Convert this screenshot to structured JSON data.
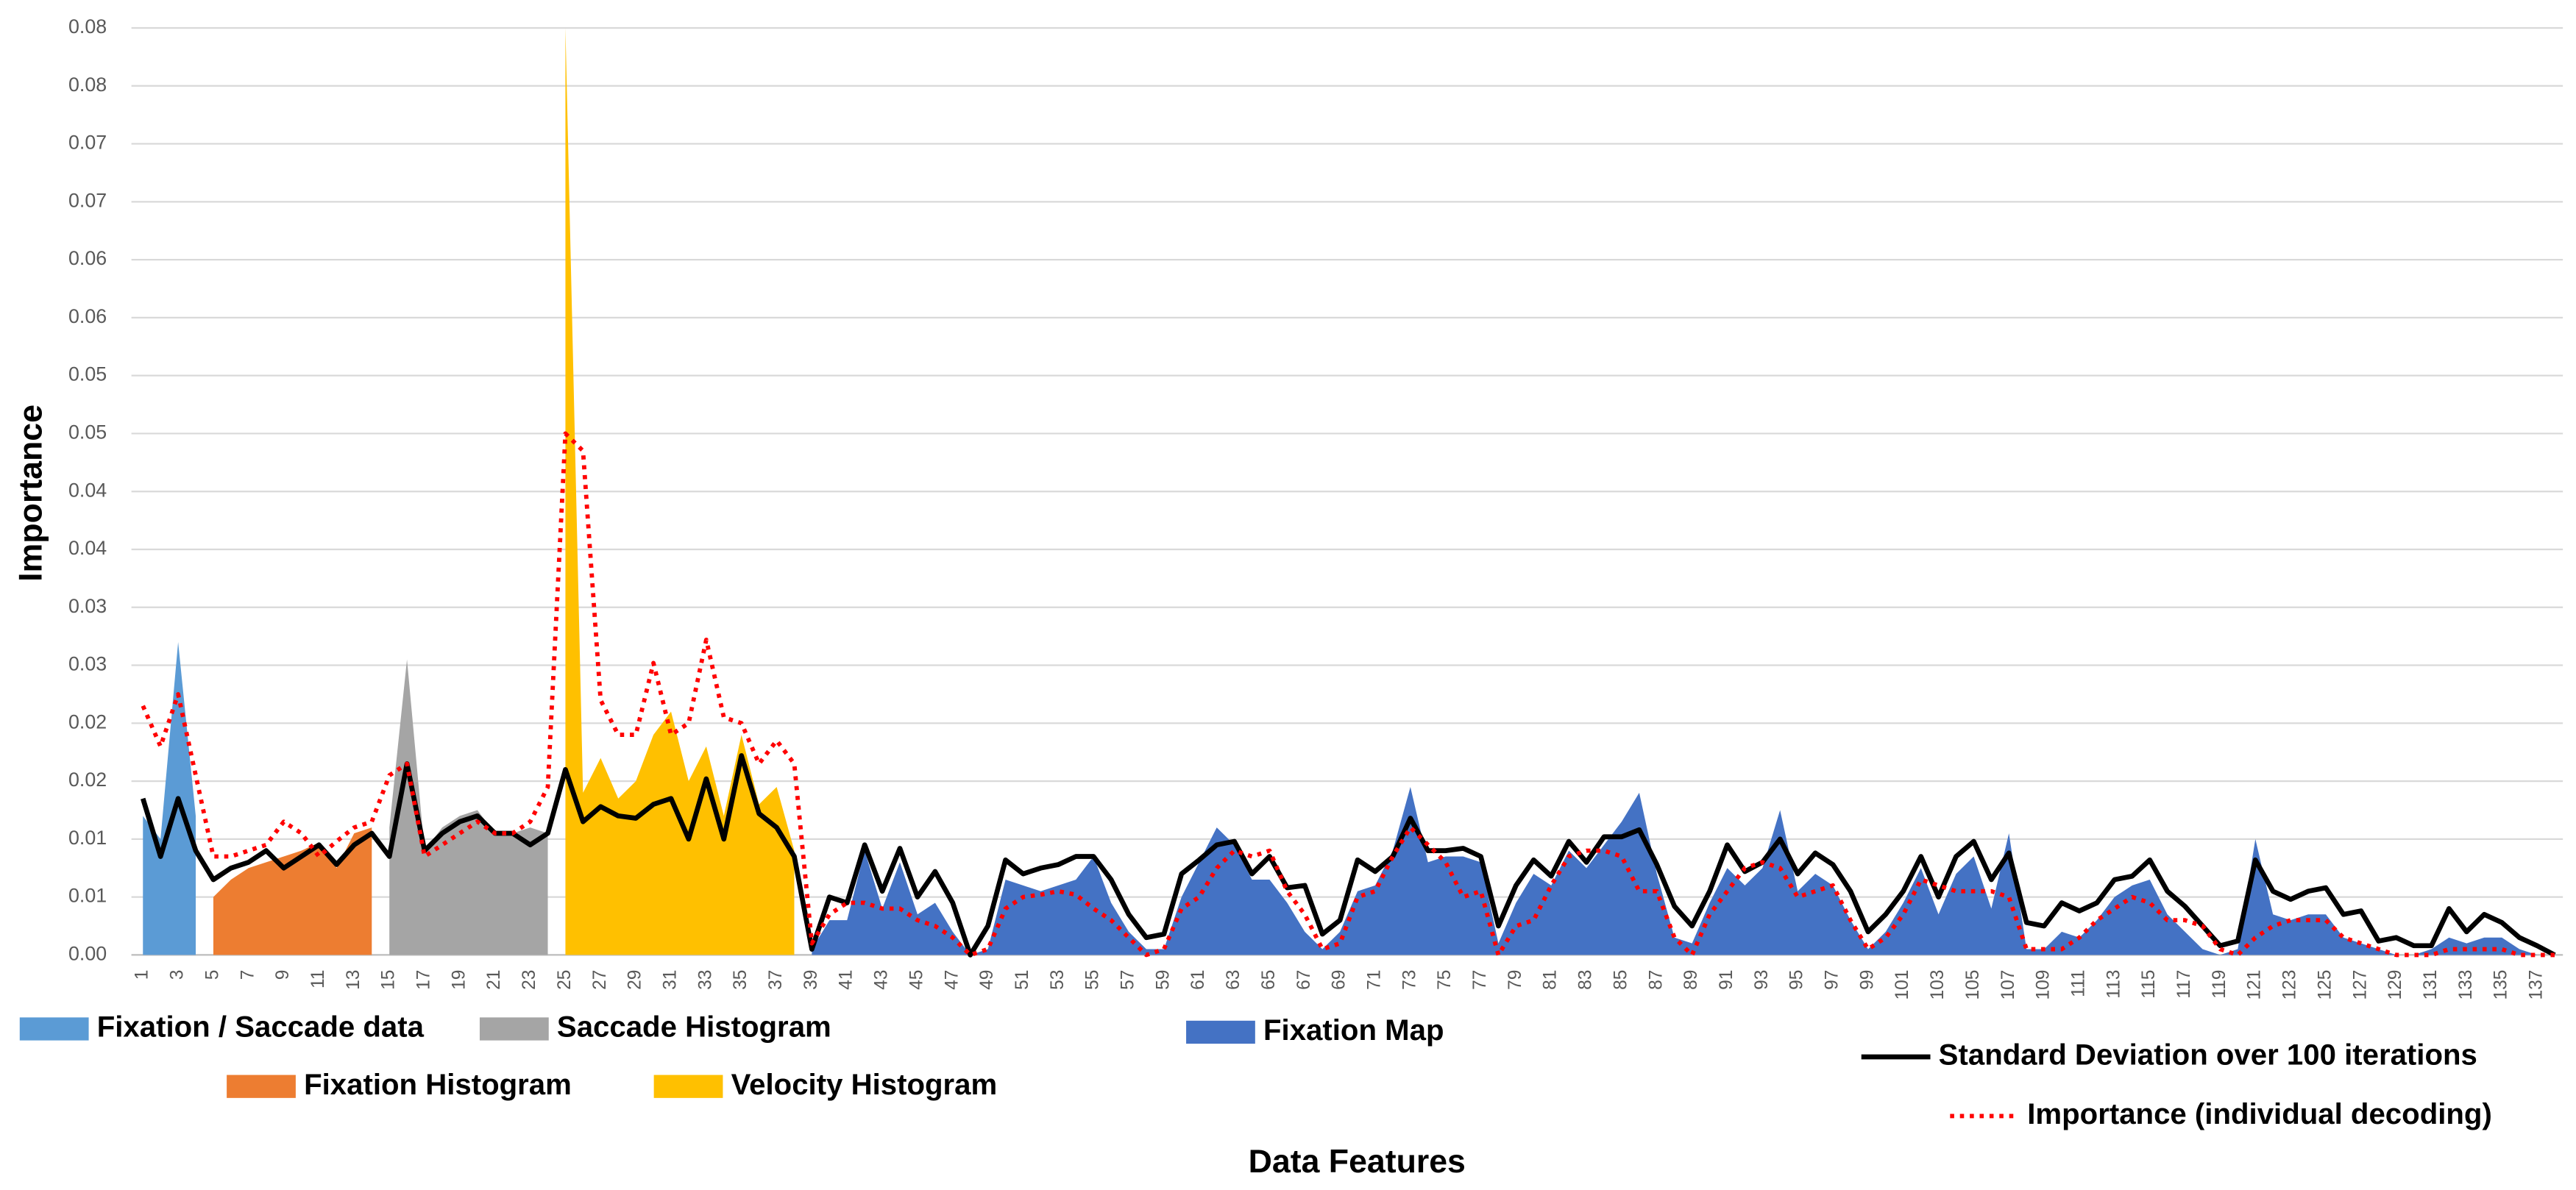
{
  "chart_data": {
    "type": "area",
    "y_label": "Importance",
    "x_label": "Data Features",
    "legend": "bottom",
    "grid": true,
    "ylim": [
      0,
      0.08
    ],
    "yticks": [
      {
        "value": 0,
        "label": "0.00"
      },
      {
        "value": 0.005,
        "label": "0.01"
      },
      0.01,
      {
        "value": 0.015,
        "label": "0.02"
      },
      0.02,
      {
        "value": 0.025,
        "label": "0.03"
      },
      0.03,
      {
        "value": 0.035,
        "label": "0.04"
      },
      0.04,
      {
        "value": 0.045,
        "label": "0.05"
      },
      0.05,
      {
        "value": 0.055,
        "label": "0.06"
      },
      0.06,
      {
        "value": 0.065,
        "label": "0.07"
      },
      0.07,
      {
        "value": 0.075,
        "label": "0.08"
      },
      0.08
    ],
    "categories": [
      1,
      null,
      3,
      null,
      5,
      null,
      7,
      null,
      9,
      null,
      11,
      null,
      13,
      null,
      15,
      null,
      17,
      null,
      19,
      null,
      21,
      null,
      23,
      null,
      25,
      null,
      27,
      null,
      29,
      null,
      31,
      null,
      33,
      null,
      35,
      null,
      37,
      null,
      39,
      null,
      41,
      null,
      43,
      null,
      45,
      null,
      47,
      null,
      49,
      null,
      51,
      null,
      53,
      null,
      55,
      null,
      57,
      null,
      59,
      null,
      61,
      null,
      63,
      null,
      65,
      null,
      67,
      null,
      69,
      null,
      71,
      null,
      73,
      null,
      75,
      null,
      77,
      null,
      79,
      null,
      81,
      null,
      83,
      null,
      85,
      null,
      87,
      null,
      89,
      null,
      91,
      null,
      93,
      null,
      95,
      null,
      97,
      null,
      99,
      null,
      101,
      null,
      103,
      null,
      105,
      null,
      107,
      null,
      109,
      null,
      111,
      null,
      113,
      null,
      115,
      null,
      117,
      null,
      119,
      null,
      121,
      null,
      123,
      null,
      125,
      null,
      127,
      null,
      129,
      null,
      131,
      null,
      133,
      null,
      135,
      null,
      137,
      null
    ],
    "series": [
      {
        "name": "Fixation / Saccade data",
        "type": "area",
        "color": "#5b9bd5",
        "values": [
          0.012,
          0.01,
          0.027,
          0.012,
          null,
          null,
          null,
          null,
          null,
          null,
          null,
          null,
          null,
          null,
          null,
          null,
          null,
          null,
          null,
          null,
          null,
          null,
          null,
          null,
          null,
          null,
          null,
          null,
          null,
          null,
          null,
          null,
          null,
          null,
          null,
          null,
          null,
          null,
          null,
          null,
          null,
          null,
          null,
          null,
          null,
          null,
          null,
          null,
          null,
          null,
          null,
          null,
          null,
          null,
          null,
          null,
          null,
          null,
          null,
          null,
          null,
          null,
          null,
          null,
          null,
          null,
          null,
          null,
          null,
          null,
          null,
          null,
          null,
          null,
          null,
          null,
          null,
          null,
          null,
          null,
          null,
          null,
          null,
          null,
          null,
          null,
          null,
          null,
          null,
          null,
          null,
          null,
          null,
          null,
          null,
          null,
          null,
          null,
          null,
          null,
          null,
          null,
          null,
          null,
          null,
          null,
          null,
          null,
          null,
          null,
          null,
          null,
          null,
          null,
          null,
          null,
          null,
          null,
          null,
          null,
          null,
          null,
          null,
          null,
          null,
          null,
          null,
          null,
          null,
          null,
          null,
          null,
          null,
          null,
          null,
          null,
          null,
          null
        ]
      },
      {
        "name": "Fixation Histogram",
        "type": "area",
        "color": "#ed7d31",
        "values": [
          null,
          null,
          null,
          null,
          0.005,
          0.0065,
          0.0075,
          0.008,
          0.0085,
          0.009,
          0.0097,
          0.0075,
          0.0105,
          0.011,
          null,
          null,
          null,
          null,
          null,
          null,
          null,
          null,
          null,
          null,
          null,
          null,
          null,
          null,
          null,
          null,
          null,
          null,
          null,
          null,
          null,
          null,
          null,
          null,
          null,
          null,
          null,
          null,
          null,
          null,
          null,
          null,
          null,
          null,
          null,
          null,
          null,
          null,
          null,
          null,
          null,
          null,
          null,
          null,
          null,
          null,
          null,
          null,
          null,
          null,
          null,
          null,
          null,
          null,
          null,
          null,
          null,
          null,
          null,
          null,
          null,
          null,
          null,
          null,
          null,
          null,
          null,
          null,
          null,
          null,
          null,
          null,
          null,
          null,
          null,
          null,
          null,
          null,
          null,
          null,
          null,
          null,
          null,
          null,
          null,
          null,
          null,
          null,
          null,
          null,
          null,
          null,
          null,
          null,
          null,
          null,
          null,
          null,
          null,
          null,
          null,
          null,
          null,
          null,
          null,
          null,
          null,
          null,
          null,
          null,
          null,
          null,
          null,
          null,
          null,
          null,
          null,
          null,
          null,
          null,
          null,
          null,
          null,
          null
        ]
      },
      {
        "name": "Saccade Histogram",
        "type": "area",
        "color": "#a5a5a5",
        "values": [
          null,
          null,
          null,
          null,
          null,
          null,
          null,
          null,
          null,
          null,
          null,
          null,
          null,
          null,
          0.011,
          0.0255,
          0.009,
          0.011,
          0.012,
          0.0125,
          0.0105,
          0.0105,
          0.011,
          0.0105,
          null,
          null,
          null,
          null,
          null,
          null,
          null,
          null,
          null,
          null,
          null,
          null,
          null,
          null,
          null,
          null,
          null,
          null,
          null,
          null,
          null,
          null,
          null,
          null,
          null,
          null,
          null,
          null,
          null,
          null,
          null,
          null,
          null,
          null,
          null,
          null,
          null,
          null,
          null,
          null,
          null,
          null,
          null,
          null,
          null,
          null,
          null,
          null,
          null,
          null,
          null,
          null,
          null,
          null,
          null,
          null,
          null,
          null,
          null,
          null,
          null,
          null,
          null,
          null,
          null,
          null,
          null,
          null,
          null,
          null,
          null,
          null,
          null,
          null,
          null,
          null,
          null,
          null,
          null,
          null,
          null,
          null,
          null,
          null,
          null,
          null,
          null,
          null,
          null,
          null,
          null,
          null,
          null,
          null,
          null,
          null,
          null,
          null,
          null,
          null,
          null,
          null,
          null,
          null,
          null,
          null,
          null,
          null,
          null,
          null,
          null,
          null,
          null,
          null
        ]
      },
      {
        "name": "Velocity Histogram",
        "type": "area",
        "color": "#ffc000",
        "values": [
          null,
          null,
          null,
          null,
          null,
          null,
          null,
          null,
          null,
          null,
          null,
          null,
          null,
          null,
          null,
          null,
          null,
          null,
          null,
          null,
          null,
          null,
          null,
          null,
          0.08,
          0.014,
          0.017,
          0.0135,
          0.015,
          0.019,
          0.021,
          0.015,
          0.018,
          0.012,
          0.019,
          0.013,
          0.0145,
          0.009,
          null,
          null,
          null,
          null,
          null,
          null,
          null,
          null,
          null,
          null,
          null,
          null,
          null,
          null,
          null,
          null,
          null,
          null,
          null,
          null,
          null,
          null,
          null,
          null,
          null,
          null,
          null,
          null,
          null,
          null,
          null,
          null,
          null,
          null,
          null,
          null,
          null,
          null,
          null,
          null,
          null,
          null,
          null,
          null,
          null,
          null,
          null,
          null,
          null,
          null,
          null,
          null,
          null,
          null,
          null,
          null,
          null,
          null,
          null,
          null,
          null,
          null,
          null,
          null,
          null,
          null,
          null,
          null,
          null,
          null,
          null,
          null,
          null,
          null,
          null,
          null,
          null,
          null,
          null,
          null,
          null,
          null,
          null,
          null,
          null,
          null,
          null,
          null,
          null,
          null,
          null,
          null,
          null,
          null,
          null,
          null,
          null,
          null,
          null,
          null
        ]
      },
      {
        "name": "Fixation Map",
        "type": "area",
        "color": "#4472c4",
        "values": [
          null,
          null,
          null,
          null,
          null,
          null,
          null,
          null,
          null,
          null,
          null,
          null,
          null,
          null,
          null,
          null,
          null,
          null,
          null,
          null,
          null,
          null,
          null,
          null,
          null,
          null,
          null,
          null,
          null,
          null,
          null,
          null,
          null,
          null,
          null,
          null,
          null,
          null,
          0.0005,
          0.003,
          0.003,
          0.009,
          0.004,
          0.008,
          0.0035,
          0.0045,
          0.002,
          0,
          0.0005,
          0.0065,
          0.006,
          0.0055,
          0.006,
          0.0065,
          0.0085,
          0.0045,
          0.002,
          0.0005,
          0.0005,
          0.005,
          0.008,
          0.011,
          0.0095,
          0.0065,
          0.0065,
          0.0045,
          0.002,
          0.0005,
          0.002,
          0.0055,
          0.006,
          0.009,
          0.0145,
          0.008,
          0.0085,
          0.0085,
          0.008,
          0.001,
          0.0045,
          0.007,
          0.006,
          0.009,
          0.0075,
          0.0095,
          0.0115,
          0.014,
          0.007,
          0.0015,
          0.001,
          0.0045,
          0.0075,
          0.006,
          0.0075,
          0.0125,
          0.0055,
          0.007,
          0.006,
          0.003,
          0.0005,
          0.002,
          0.0045,
          0.0075,
          0.0035,
          0.007,
          0.0085,
          0.004,
          0.0105,
          0.0005,
          0.0005,
          0.002,
          0.0015,
          0.003,
          0.005,
          0.006,
          0.0065,
          0.0035,
          0.002,
          0.0005,
          0,
          0.0005,
          0.01,
          0.0035,
          0.003,
          0.0035,
          0.0035,
          0.0015,
          0.001,
          0.0005,
          0,
          0,
          0.0005,
          0.0015,
          0.001,
          0.0015,
          0.0015,
          0.0005,
          0,
          0
        ]
      },
      {
        "name": "Standard Deviation over 100 iterations",
        "type": "line",
        "color": "#000000",
        "dash": "solid",
        "values": [
          0.0135,
          0.0085,
          0.0135,
          0.009,
          0.0065,
          0.0075,
          0.008,
          0.009,
          0.0075,
          0.0085,
          0.0095,
          0.0078,
          0.0095,
          0.0105,
          0.0085,
          0.0165,
          0.009,
          0.0105,
          0.0115,
          0.012,
          0.0105,
          0.0105,
          0.0095,
          0.0105,
          0.016,
          0.0115,
          0.0128,
          0.012,
          0.0118,
          0.013,
          0.0135,
          0.01,
          0.0152,
          0.01,
          0.0172,
          0.0122,
          0.011,
          0.0085,
          0.0005,
          0.005,
          0.0045,
          0.0095,
          0.0055,
          0.0092,
          0.005,
          0.0072,
          0.0045,
          0,
          0.0025,
          0.0082,
          0.007,
          0.0075,
          0.0078,
          0.0085,
          0.0085,
          0.0065,
          0.0035,
          0.0015,
          0.0018,
          0.007,
          0.0082,
          0.0095,
          0.0098,
          0.007,
          0.0085,
          0.0058,
          0.006,
          0.0018,
          0.003,
          0.0082,
          0.0072,
          0.0085,
          0.0118,
          0.009,
          0.009,
          0.0092,
          0.0085,
          0.0025,
          0.006,
          0.0082,
          0.0068,
          0.0098,
          0.008,
          0.0102,
          0.0102,
          0.0108,
          0.0078,
          0.0042,
          0.0025,
          0.0055,
          0.0095,
          0.0072,
          0.008,
          0.01,
          0.007,
          0.0088,
          0.0078,
          0.0055,
          0.002,
          0.0035,
          0.0055,
          0.0085,
          0.005,
          0.0085,
          0.0098,
          0.0065,
          0.0088,
          0.0028,
          0.0025,
          0.0045,
          0.0038,
          0.0045,
          0.0065,
          0.0068,
          0.0082,
          0.0055,
          0.0042,
          0.0025,
          0.0008,
          0.0012,
          0.0082,
          0.0055,
          0.0048,
          0.0055,
          0.0058,
          0.0035,
          0.0038,
          0.0012,
          0.0015,
          0.0008,
          0.0008,
          0.004,
          0.002,
          0.0035,
          0.0028,
          0.0015,
          0.0008,
          0
        ]
      },
      {
        "name": "Importance (individual decoding)",
        "type": "line",
        "color": "#ff0000",
        "dash": "dotted",
        "values": [
          0.0215,
          0.018,
          0.0225,
          0.0155,
          0.0085,
          0.0085,
          0.009,
          0.0095,
          0.0115,
          0.0105,
          0.0085,
          0.0098,
          0.011,
          0.0115,
          0.0155,
          0.0165,
          0.0085,
          0.0095,
          0.0105,
          0.0115,
          0.0105,
          0.0105,
          0.0115,
          0.0145,
          0.045,
          0.0435,
          0.022,
          0.019,
          0.019,
          0.0252,
          0.019,
          0.02,
          0.0272,
          0.0205,
          0.02,
          0.0165,
          0.0185,
          0.0165,
          0.001,
          0.0035,
          0.0045,
          0.0045,
          0.004,
          0.004,
          0.003,
          0.0025,
          0.0015,
          0,
          0.0005,
          0.004,
          0.005,
          0.0052,
          0.0055,
          0.0052,
          0.004,
          0.003,
          0.0015,
          0,
          0.0005,
          0.004,
          0.005,
          0.0075,
          0.009,
          0.0085,
          0.009,
          0.0055,
          0.0035,
          0.0005,
          0.001,
          0.005,
          0.0055,
          0.0085,
          0.011,
          0.0095,
          0.008,
          0.005,
          0.0055,
          0,
          0.0025,
          0.003,
          0.006,
          0.0085,
          0.009,
          0.009,
          0.0085,
          0.0055,
          0.0055,
          0.0015,
          0,
          0.0035,
          0.0055,
          0.0075,
          0.008,
          0.0075,
          0.005,
          0.0055,
          0.006,
          0.003,
          0.0005,
          0.0015,
          0.0035,
          0.0065,
          0.006,
          0.0055,
          0.0055,
          0.0055,
          0.005,
          0.0005,
          0.0005,
          0.0005,
          0.0015,
          0.003,
          0.004,
          0.005,
          0.0045,
          0.003,
          0.003,
          0.0025,
          0.0005,
          0,
          0.0015,
          0.0025,
          0.003,
          0.003,
          0.003,
          0.0015,
          0.001,
          0.0005,
          0,
          0,
          0,
          0.0005,
          0.0005,
          0.0005,
          0.0005,
          0,
          0,
          0
        ]
      }
    ]
  }
}
